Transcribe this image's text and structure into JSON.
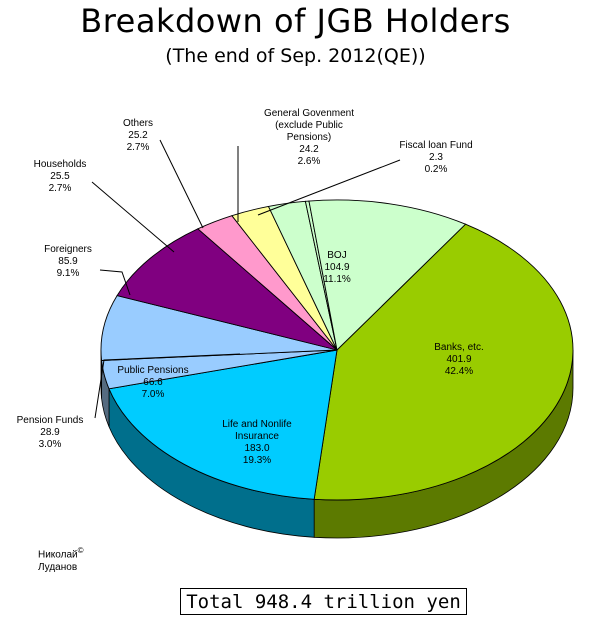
{
  "title": "Breakdown of JGB Holders",
  "subtitle": "(The end of Sep. 2012(QE))",
  "total_label": "Total  948.4 trillion yen",
  "credit": {
    "line1": "Николай",
    "copyright": "©",
    "line2": "Луданов"
  },
  "chart_data": {
    "type": "pie",
    "title": "Breakdown of JGB Holders",
    "subtitle": "(The end of Sep. 2012(QE))",
    "unit": "trillion yen",
    "total": 948.4,
    "slices": [
      {
        "id": "banks",
        "label_lines": [
          "Banks, etc."
        ],
        "value": "401.9",
        "percent": "42.4%",
        "color": "#99cc00",
        "side_color": "#5c7a00"
      },
      {
        "id": "life",
        "label_lines": [
          "Life and Nonlife",
          "Insurance"
        ],
        "value": "183.0",
        "percent": "19.3%",
        "color": "#00ccff",
        "side_color": "#006f8c"
      },
      {
        "id": "pension-funds",
        "label_lines": [
          "Pension Funds"
        ],
        "value": "28.9",
        "percent": "3.0%",
        "color": "#99ccff",
        "side_color": "#556b80"
      },
      {
        "id": "public-pensions",
        "label_lines": [
          "Public Pensions"
        ],
        "value": "66.6",
        "percent": "7.0%",
        "color": "#99ccff",
        "side_color": "#556b80"
      },
      {
        "id": "foreigners",
        "label_lines": [
          "Foreigners"
        ],
        "value": "85.9",
        "percent": "9.1%",
        "color": "#800080",
        "side_color": "#4a004a"
      },
      {
        "id": "households",
        "label_lines": [
          "Households"
        ],
        "value": "25.5",
        "percent": "2.7%",
        "color": "#ff99cc",
        "side_color": "#99587a"
      },
      {
        "id": "others",
        "label_lines": [
          "Others"
        ],
        "value": "25.2",
        "percent": "2.7%",
        "color": "#ffff99",
        "side_color": "#99995a"
      },
      {
        "id": "general-government",
        "label_lines": [
          "General Govenment",
          "(exclude Public",
          "Pensions)"
        ],
        "value": "24.2",
        "percent": "2.6%",
        "color": "#ccffcc",
        "side_color": "#7a997a"
      },
      {
        "id": "fiscal-loan-fund",
        "label_lines": [
          "Fiscal loan Fund"
        ],
        "value": "2.3",
        "percent": "0.2%",
        "color": "#ccffcc",
        "side_color": "#7a997a"
      },
      {
        "id": "boj",
        "label_lines": [
          "BOJ"
        ],
        "value": "104.9",
        "percent": "11.1%",
        "color": "#ccffcc",
        "side_color": "#7a997a"
      }
    ]
  }
}
